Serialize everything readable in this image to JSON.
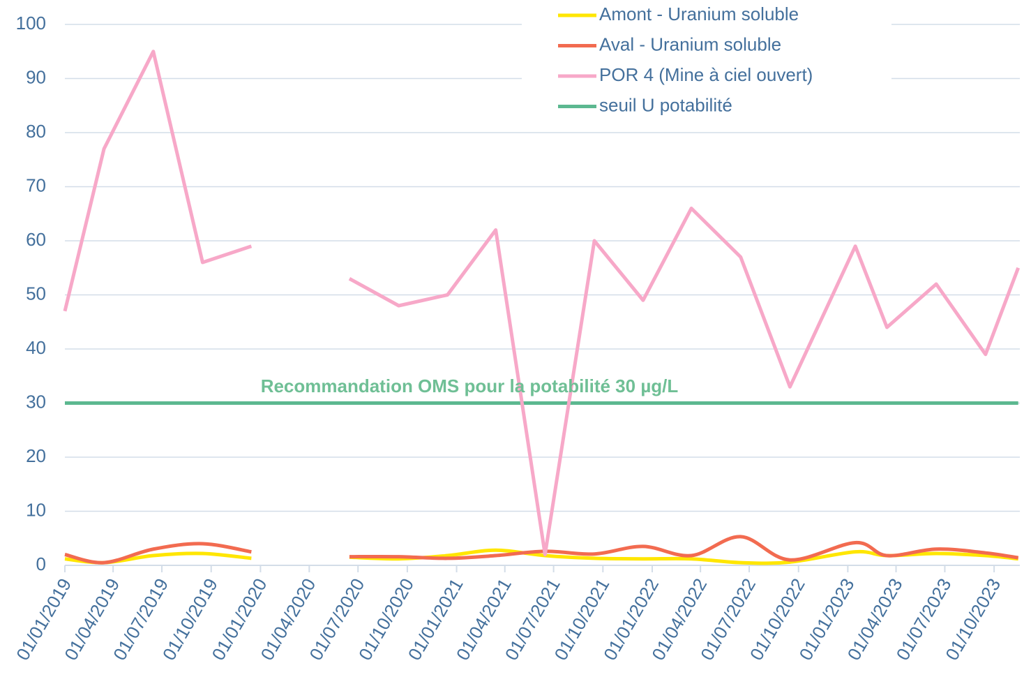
{
  "chart_data": {
    "type": "line",
    "annotation": "Recommandation OMS pour la potabilité 30 µg/L",
    "x": [
      "01/01/2019",
      "15/03/2019",
      "15/06/2019",
      "15/09/2019",
      "15/12/2019",
      "15/03/2020",
      "15/06/2020",
      "15/09/2020",
      "15/12/2020",
      "15/03/2021",
      "15/06/2021",
      "15/09/2021",
      "15/12/2021",
      "15/03/2022",
      "15/06/2022",
      "15/09/2022",
      "15/01/2023",
      "15/03/2023",
      "15/06/2023",
      "15/09/2023",
      "15/11/2023"
    ],
    "series": [
      {
        "name": "Amont - Uranium soluble",
        "color": "#ffe600",
        "smooth": true,
        "values": [
          1.2,
          0.5,
          1.8,
          2.2,
          1.3,
          null,
          1.5,
          1.2,
          1.8,
          2.8,
          1.8,
          1.3,
          1.2,
          1.2,
          0.5,
          0.6,
          2.5,
          1.8,
          2.2,
          1.8,
          1.2
        ]
      },
      {
        "name": "Aval - Uranium soluble",
        "color": "#f26b50",
        "smooth": true,
        "values": [
          2.0,
          0.5,
          3.0,
          4.0,
          2.5,
          null,
          1.6,
          1.6,
          1.3,
          1.8,
          2.6,
          2.1,
          3.5,
          1.8,
          5.3,
          1.0,
          4.2,
          1.8,
          3.0,
          2.3,
          1.4
        ]
      },
      {
        "name": "POR 4 (Mine à ciel ouvert)",
        "color": "#f7a8c8",
        "smooth": false,
        "values": [
          47,
          77,
          95,
          56,
          59,
          null,
          53,
          48,
          50,
          62,
          2,
          60,
          49,
          66,
          57,
          33,
          59,
          44,
          52,
          39,
          55
        ]
      },
      {
        "name": "seuil U potabilité",
        "color": "#5cb890",
        "smooth": false,
        "values": [
          30,
          30,
          30,
          30,
          30,
          30,
          30,
          30,
          30,
          30,
          30,
          30,
          30,
          30,
          30,
          30,
          30,
          30,
          30,
          30,
          30
        ]
      }
    ],
    "xlim": [
      "01/01/2019",
      "18/11/2023"
    ],
    "xticks": [
      "01/01/2019",
      "01/04/2019",
      "01/07/2019",
      "01/10/2019",
      "01/01/2020",
      "01/04/2020",
      "01/07/2020",
      "01/10/2020",
      "01/01/2021",
      "01/04/2021",
      "01/07/2021",
      "01/10/2021",
      "01/01/2022",
      "01/04/2022",
      "01/07/2022",
      "01/10/2022",
      "01/01/2023",
      "01/04/2023",
      "01/07/2023",
      "01/10/2023"
    ],
    "ylim": [
      0,
      100
    ],
    "yticks": [
      0,
      10,
      20,
      30,
      40,
      50,
      60,
      70,
      80,
      90,
      100
    ],
    "grid": true,
    "legend": "top-right"
  }
}
